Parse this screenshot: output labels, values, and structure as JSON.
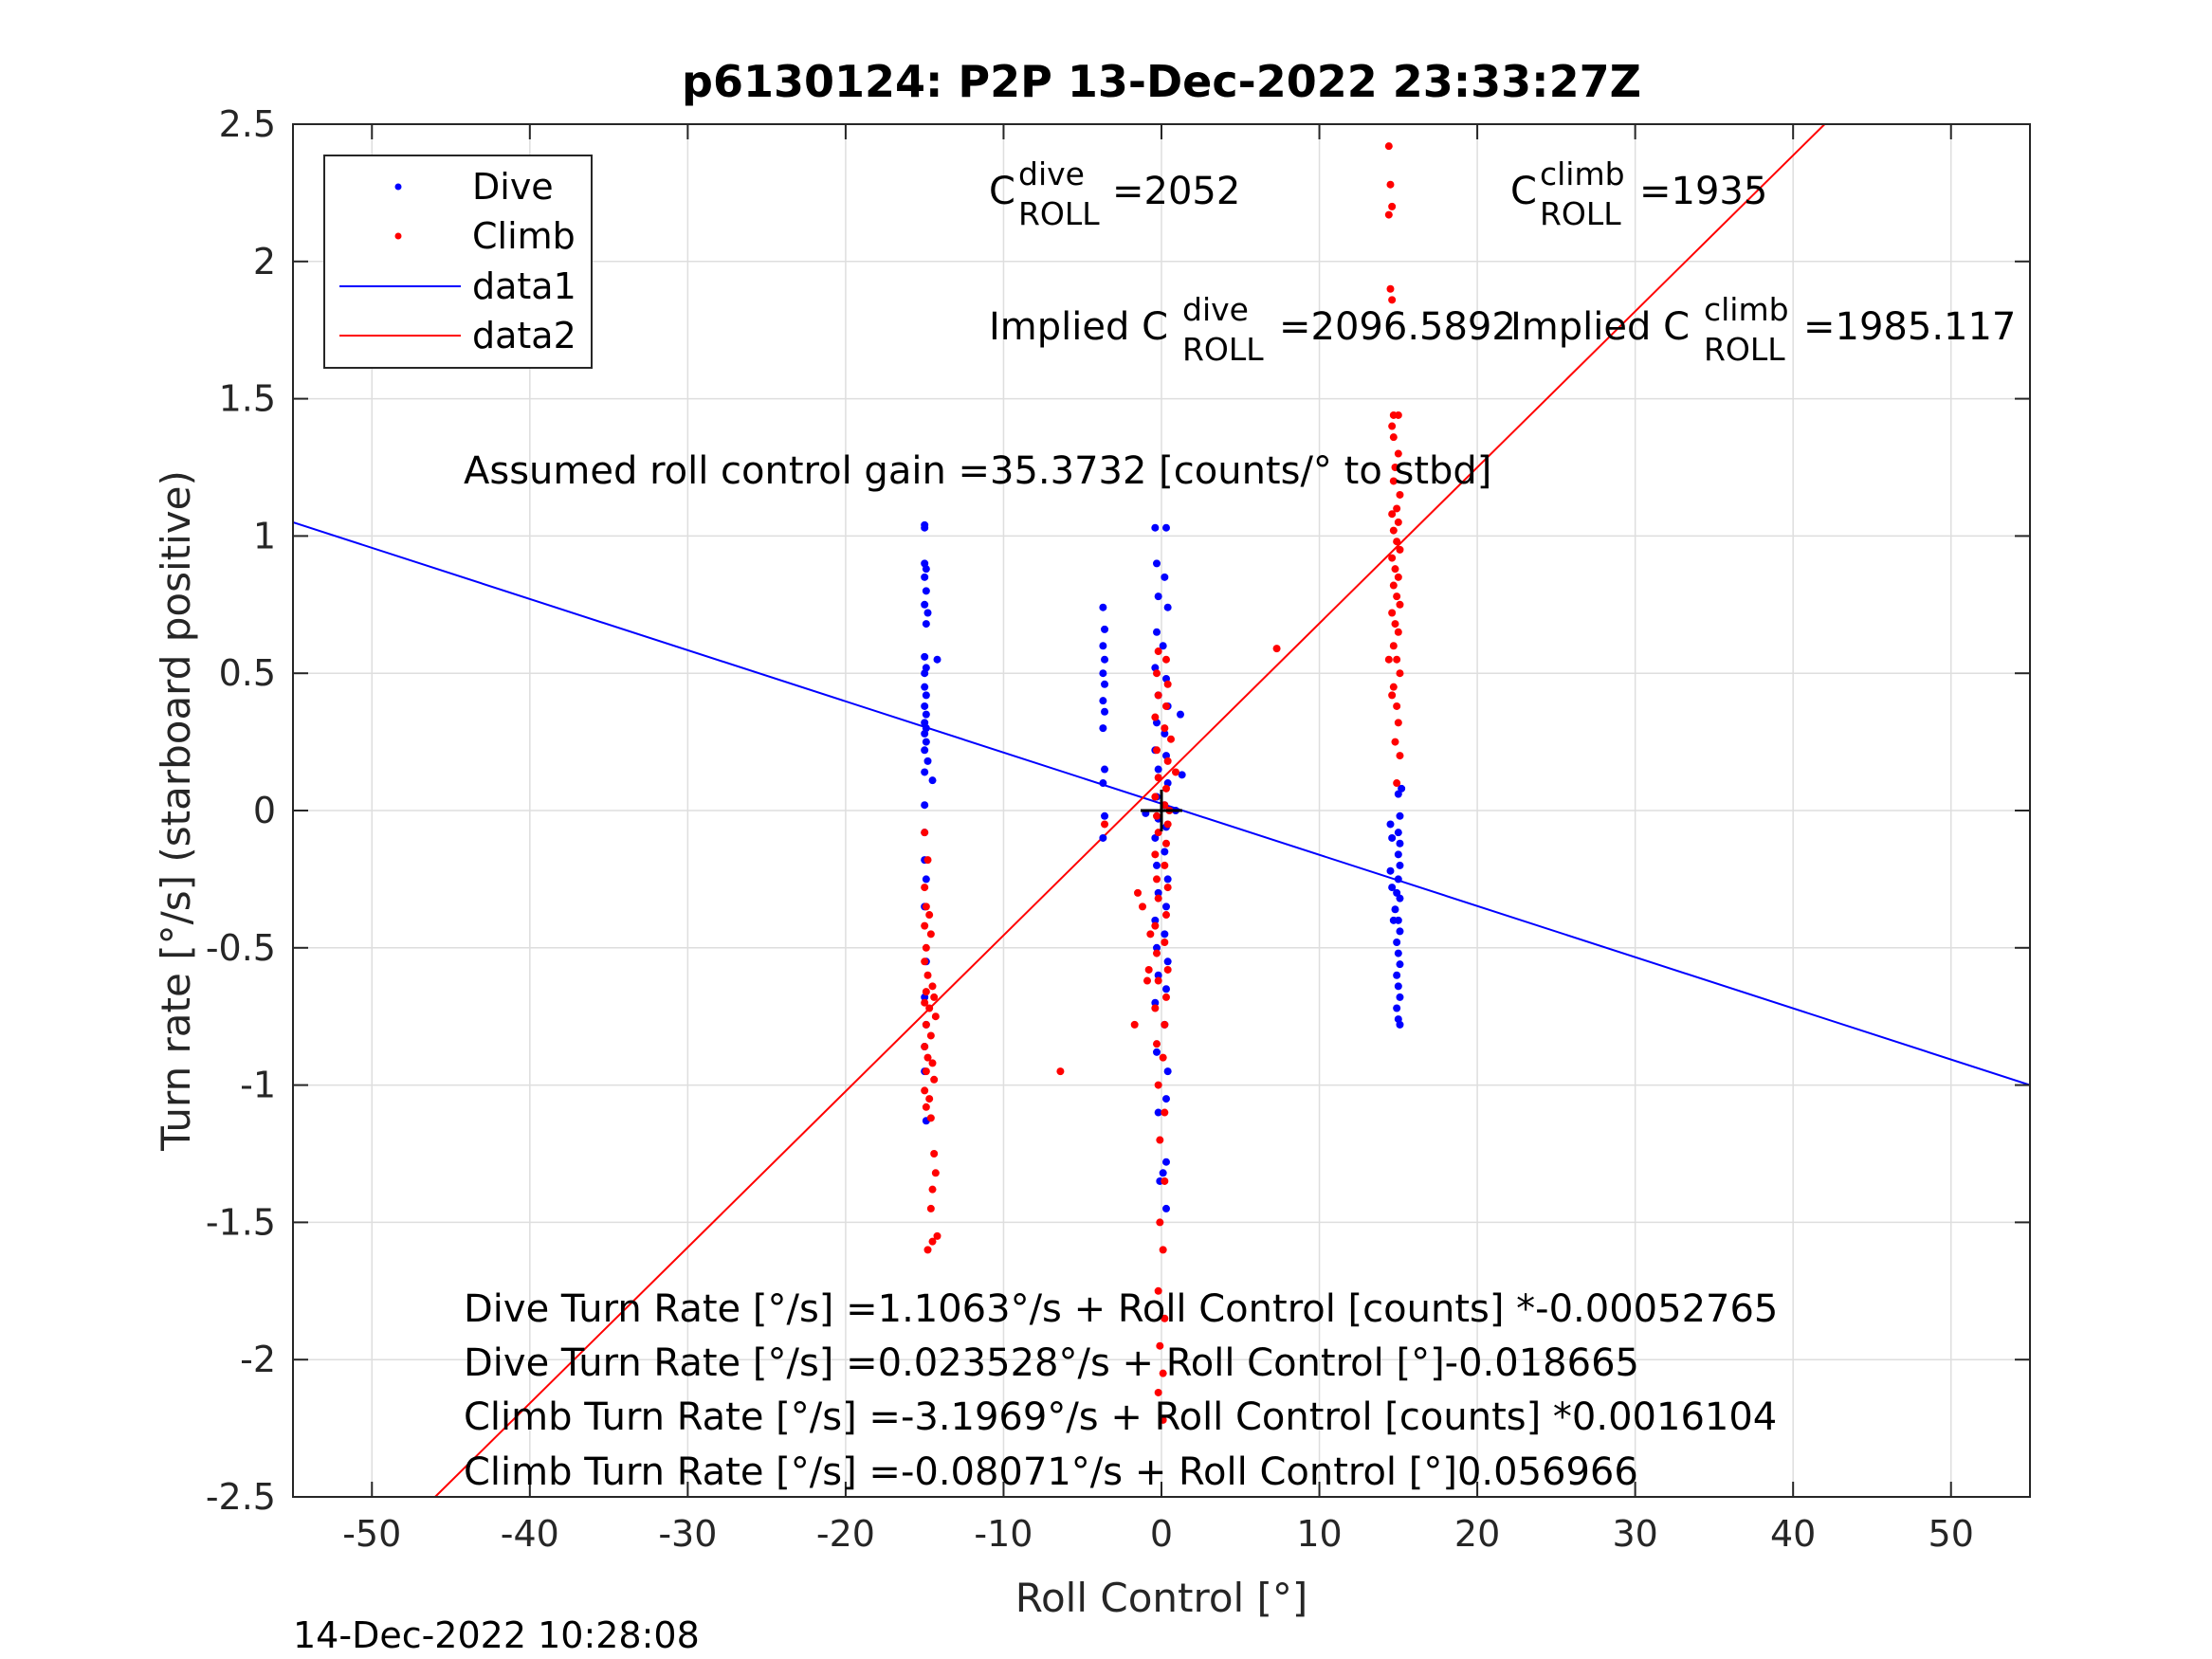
{
  "chart_data": {
    "type": "scatter",
    "title": "p6130124: P2P 13-Dec-2022 23:33:27Z",
    "xlabel": "Roll Control [°]",
    "ylabel": "Turn rate [°/s] (starboard positive)",
    "xlim": [
      -55,
      55
    ],
    "ylim": [
      -2.5,
      2.5
    ],
    "xticks": [
      -50,
      -40,
      -30,
      -20,
      -10,
      0,
      10,
      20,
      30,
      40,
      50
    ],
    "xtick_labels": [
      "-50",
      "-40",
      "-30",
      "-20",
      "-10",
      "0",
      "10",
      "20",
      "30",
      "40",
      "50"
    ],
    "yticks": [
      -2.5,
      -2,
      -1.5,
      -1,
      -0.5,
      0,
      0.5,
      1,
      1.5,
      2,
      2.5
    ],
    "ytick_labels": [
      "-2.5",
      "-2",
      "-1.5",
      "-1",
      "-0.5",
      "0",
      "0.5",
      "1",
      "1.5",
      "2",
      "2.5"
    ],
    "grid": true,
    "legend_position": "top-left",
    "legend": [
      "Dive",
      "Climb",
      "data1",
      "data2"
    ],
    "series": [
      {
        "name": "Dive",
        "kind": "points",
        "color": "#0000ff",
        "points": [
          [
            -15.0,
            1.04
          ],
          [
            -15.0,
            1.03
          ],
          [
            -15.0,
            0.9
          ],
          [
            -14.9,
            0.88
          ],
          [
            -15.0,
            0.85
          ],
          [
            -14.9,
            0.8
          ],
          [
            -15.0,
            0.75
          ],
          [
            -14.8,
            0.72
          ],
          [
            -14.9,
            0.68
          ],
          [
            -15.0,
            0.56
          ],
          [
            -14.9,
            0.52
          ],
          [
            -15.0,
            0.5
          ],
          [
            -14.2,
            0.55
          ],
          [
            -15.0,
            0.45
          ],
          [
            -14.9,
            0.42
          ],
          [
            -15.0,
            0.38
          ],
          [
            -14.9,
            0.35
          ],
          [
            -15.0,
            0.32
          ],
          [
            -14.9,
            0.3
          ],
          [
            -15.0,
            0.28
          ],
          [
            -14.9,
            0.25
          ],
          [
            -15.0,
            0.22
          ],
          [
            -14.8,
            0.18
          ],
          [
            -15.0,
            0.14
          ],
          [
            -14.5,
            0.11
          ],
          [
            -15.0,
            0.02
          ],
          [
            -15.0,
            -0.08
          ],
          [
            -15.0,
            -0.18
          ],
          [
            -14.9,
            -0.25
          ],
          [
            -15.0,
            -0.35
          ],
          [
            -14.9,
            -0.55
          ],
          [
            -15.0,
            -0.68
          ],
          [
            -14.9,
            -0.78
          ],
          [
            -15.0,
            -0.86
          ],
          [
            -15.0,
            -0.95
          ],
          [
            -14.9,
            -1.13
          ],
          [
            -3.7,
            0.74
          ],
          [
            -3.6,
            0.66
          ],
          [
            -3.7,
            0.6
          ],
          [
            -3.6,
            0.55
          ],
          [
            -3.7,
            0.5
          ],
          [
            -3.6,
            0.46
          ],
          [
            -3.7,
            0.4
          ],
          [
            -3.6,
            0.36
          ],
          [
            -3.7,
            0.3
          ],
          [
            -3.6,
            0.15
          ],
          [
            -3.7,
            0.1
          ],
          [
            -3.6,
            -0.02
          ],
          [
            -3.7,
            -0.1
          ],
          [
            -0.4,
            1.03
          ],
          [
            0.3,
            1.03
          ],
          [
            -0.3,
            0.9
          ],
          [
            0.2,
            0.85
          ],
          [
            -0.2,
            0.78
          ],
          [
            0.4,
            0.74
          ],
          [
            -0.3,
            0.65
          ],
          [
            0.1,
            0.6
          ],
          [
            -0.4,
            0.52
          ],
          [
            0.3,
            0.48
          ],
          [
            -0.2,
            0.42
          ],
          [
            0.4,
            0.38
          ],
          [
            1.2,
            0.35
          ],
          [
            -0.3,
            0.32
          ],
          [
            0.2,
            0.28
          ],
          [
            -0.4,
            0.22
          ],
          [
            0.3,
            0.2
          ],
          [
            -0.2,
            0.15
          ],
          [
            1.3,
            0.13
          ],
          [
            0.4,
            0.1
          ],
          [
            -0.3,
            0.05
          ],
          [
            0.2,
            0.02
          ],
          [
            -1.0,
            -0.01
          ],
          [
            0.9,
            0.0
          ],
          [
            -0.2,
            -0.03
          ],
          [
            0.3,
            -0.06
          ],
          [
            -0.4,
            -0.1
          ],
          [
            0.2,
            -0.15
          ],
          [
            -0.3,
            -0.2
          ],
          [
            0.4,
            -0.25
          ],
          [
            -0.2,
            -0.3
          ],
          [
            0.3,
            -0.35
          ],
          [
            -0.4,
            -0.4
          ],
          [
            0.2,
            -0.45
          ],
          [
            -0.3,
            -0.5
          ],
          [
            0.4,
            -0.55
          ],
          [
            -0.2,
            -0.6
          ],
          [
            0.3,
            -0.65
          ],
          [
            -0.4,
            -0.7
          ],
          [
            0.2,
            -0.78
          ],
          [
            -0.3,
            -0.88
          ],
          [
            0.4,
            -0.95
          ],
          [
            0.3,
            -1.05
          ],
          [
            -0.2,
            -1.1
          ],
          [
            0.3,
            -1.28
          ],
          [
            0.1,
            -1.32
          ],
          [
            -0.1,
            -1.35
          ],
          [
            0.3,
            -1.45
          ],
          [
            14.5,
            -0.05
          ],
          [
            14.6,
            -0.1
          ],
          [
            14.5,
            -0.22
          ],
          [
            15.2,
            0.08
          ],
          [
            15.0,
            0.06
          ],
          [
            15.1,
            -0.02
          ],
          [
            15.0,
            -0.08
          ],
          [
            15.1,
            -0.12
          ],
          [
            15.0,
            -0.16
          ],
          [
            15.1,
            -0.2
          ],
          [
            15.0,
            -0.25
          ],
          [
            14.9,
            -0.3
          ],
          [
            15.1,
            -0.32
          ],
          [
            14.8,
            -0.36
          ],
          [
            15.0,
            -0.4
          ],
          [
            15.1,
            -0.44
          ],
          [
            14.9,
            -0.48
          ],
          [
            15.0,
            -0.52
          ],
          [
            15.1,
            -0.56
          ],
          [
            14.9,
            -0.6
          ],
          [
            15.0,
            -0.64
          ],
          [
            15.1,
            -0.68
          ],
          [
            14.9,
            -0.72
          ],
          [
            15.0,
            -0.76
          ],
          [
            15.1,
            -0.78
          ],
          [
            14.6,
            -0.28
          ],
          [
            14.7,
            -0.4
          ]
        ]
      },
      {
        "name": "Climb",
        "kind": "points",
        "color": "#ff0000",
        "points": [
          [
            -15.0,
            -0.08
          ],
          [
            -14.8,
            -0.18
          ],
          [
            -15.0,
            -0.28
          ],
          [
            -14.9,
            -0.35
          ],
          [
            -14.7,
            -0.38
          ],
          [
            -15.0,
            -0.42
          ],
          [
            -14.6,
            -0.45
          ],
          [
            -14.9,
            -0.5
          ],
          [
            -15.0,
            -0.55
          ],
          [
            -14.8,
            -0.6
          ],
          [
            -14.5,
            -0.64
          ],
          [
            -14.9,
            -0.66
          ],
          [
            -14.4,
            -0.68
          ],
          [
            -15.0,
            -0.7
          ],
          [
            -14.7,
            -0.72
          ],
          [
            -14.3,
            -0.75
          ],
          [
            -14.9,
            -0.78
          ],
          [
            -14.6,
            -0.82
          ],
          [
            -15.0,
            -0.86
          ],
          [
            -14.8,
            -0.9
          ],
          [
            -14.5,
            -0.92
          ],
          [
            -14.9,
            -0.95
          ],
          [
            -14.4,
            -0.98
          ],
          [
            -15.0,
            -1.02
          ],
          [
            -14.7,
            -1.05
          ],
          [
            -14.9,
            -1.08
          ],
          [
            -14.6,
            -1.12
          ],
          [
            -14.4,
            -1.25
          ],
          [
            -14.3,
            -1.32
          ],
          [
            -14.5,
            -1.38
          ],
          [
            -14.6,
            -1.45
          ],
          [
            -14.2,
            -1.55
          ],
          [
            -14.5,
            -1.57
          ],
          [
            -14.8,
            -1.6
          ],
          [
            -6.4,
            -0.95
          ],
          [
            -3.6,
            -0.05
          ],
          [
            -1.7,
            -0.78
          ],
          [
            -1.5,
            -0.3
          ],
          [
            -1.2,
            -0.35
          ],
          [
            -0.8,
            -0.58
          ],
          [
            -0.7,
            -0.45
          ],
          [
            -0.9,
            -0.62
          ],
          [
            -0.2,
            0.58
          ],
          [
            0.3,
            0.55
          ],
          [
            -0.3,
            0.5
          ],
          [
            0.4,
            0.46
          ],
          [
            -0.2,
            0.42
          ],
          [
            0.3,
            0.38
          ],
          [
            -0.4,
            0.34
          ],
          [
            0.2,
            0.3
          ],
          [
            0.6,
            0.26
          ],
          [
            -0.3,
            0.22
          ],
          [
            0.4,
            0.18
          ],
          [
            0.9,
            0.14
          ],
          [
            -0.2,
            0.12
          ],
          [
            0.3,
            0.08
          ],
          [
            -0.4,
            0.05
          ],
          [
            0.2,
            0.02
          ],
          [
            0.5,
            0.0
          ],
          [
            -0.3,
            -0.02
          ],
          [
            0.4,
            -0.05
          ],
          [
            -0.2,
            -0.08
          ],
          [
            0.3,
            -0.12
          ],
          [
            -0.4,
            -0.16
          ],
          [
            0.2,
            -0.2
          ],
          [
            -0.3,
            -0.25
          ],
          [
            0.4,
            -0.28
          ],
          [
            -0.2,
            -0.32
          ],
          [
            0.3,
            -0.38
          ],
          [
            -0.4,
            -0.42
          ],
          [
            0.2,
            -0.48
          ],
          [
            -0.3,
            -0.52
          ],
          [
            0.4,
            -0.58
          ],
          [
            -0.2,
            -0.62
          ],
          [
            0.3,
            -0.68
          ],
          [
            -0.4,
            -0.72
          ],
          [
            0.2,
            -0.78
          ],
          [
            -0.3,
            -0.85
          ],
          [
            0.1,
            -0.9
          ],
          [
            -0.2,
            -1.0
          ],
          [
            0.2,
            -1.1
          ],
          [
            -0.1,
            -1.2
          ],
          [
            0.2,
            -1.35
          ],
          [
            -0.1,
            -1.5
          ],
          [
            0.1,
            -1.6
          ],
          [
            -0.2,
            -1.75
          ],
          [
            0.2,
            -1.85
          ],
          [
            -0.1,
            -1.95
          ],
          [
            0.1,
            -2.05
          ],
          [
            -0.2,
            -2.12
          ],
          [
            0.1,
            -2.22
          ],
          [
            7.3,
            0.59
          ],
          [
            14.4,
            0.55
          ],
          [
            14.6,
            0.42
          ],
          [
            14.4,
            2.42
          ],
          [
            14.5,
            2.28
          ],
          [
            14.6,
            2.2
          ],
          [
            14.4,
            2.17
          ],
          [
            14.5,
            1.9
          ],
          [
            14.6,
            1.86
          ],
          [
            14.7,
            1.44
          ],
          [
            15.0,
            1.44
          ],
          [
            14.6,
            1.4
          ],
          [
            14.7,
            1.36
          ],
          [
            15.0,
            1.3
          ],
          [
            14.8,
            1.25
          ],
          [
            14.7,
            1.2
          ],
          [
            15.1,
            1.15
          ],
          [
            14.9,
            1.1
          ],
          [
            14.6,
            1.08
          ],
          [
            15.0,
            1.05
          ],
          [
            14.7,
            1.02
          ],
          [
            14.9,
            0.98
          ],
          [
            15.1,
            0.95
          ],
          [
            14.6,
            0.92
          ],
          [
            14.8,
            0.88
          ],
          [
            15.0,
            0.85
          ],
          [
            14.7,
            0.82
          ],
          [
            14.9,
            0.78
          ],
          [
            15.1,
            0.75
          ],
          [
            14.6,
            0.72
          ],
          [
            14.8,
            0.68
          ],
          [
            15.0,
            0.65
          ],
          [
            14.7,
            0.6
          ],
          [
            14.9,
            0.55
          ],
          [
            15.1,
            0.5
          ],
          [
            14.7,
            0.45
          ],
          [
            14.9,
            0.38
          ],
          [
            15.0,
            0.32
          ],
          [
            14.8,
            0.25
          ],
          [
            15.1,
            0.2
          ],
          [
            14.9,
            0.1
          ]
        ]
      },
      {
        "name": "data1",
        "kind": "line",
        "color": "#0000ff",
        "points": [
          [
            -55,
            1.05
          ],
          [
            55,
            -1.0
          ]
        ]
      },
      {
        "name": "data2",
        "kind": "line",
        "color": "#ff0000",
        "points": [
          [
            -46,
            -2.5
          ],
          [
            42,
            2.5
          ]
        ]
      }
    ],
    "fit_marker": {
      "x": 0,
      "y": 0
    },
    "annotations": {
      "c_dive": {
        "base": "C",
        "sup": "dive",
        "sub": "ROLL",
        "value": "=2052"
      },
      "c_climb": {
        "base": "C",
        "sup": "climb",
        "sub": "ROLL",
        "value": "=1935"
      },
      "implied_dive": {
        "prefix": "Implied C",
        "sup": "dive",
        "sub": "ROLL",
        "value": "=2096.5892"
      },
      "implied_climb": {
        "prefix": "Implied C",
        "sup": "climb",
        "sub": "ROLL",
        "value": "=1985.117"
      },
      "gain": "Assumed roll control gain =35.3732 [counts/° to stbd]",
      "eq_lines": [
        "Dive Turn Rate [°/s] =1.1063°/s + Roll Control [counts] *-0.00052765",
        "Dive Turn Rate [°/s] =0.023528°/s + Roll Control [°]-0.018665",
        "Climb Turn Rate [°/s] =-3.1969°/s + Roll Control [counts] *0.0016104",
        "Climb Turn Rate [°/s] =-0.08071°/s + Roll Control [°]0.056966"
      ]
    }
  },
  "timestamp": "14-Dec-2022 10:28:08"
}
